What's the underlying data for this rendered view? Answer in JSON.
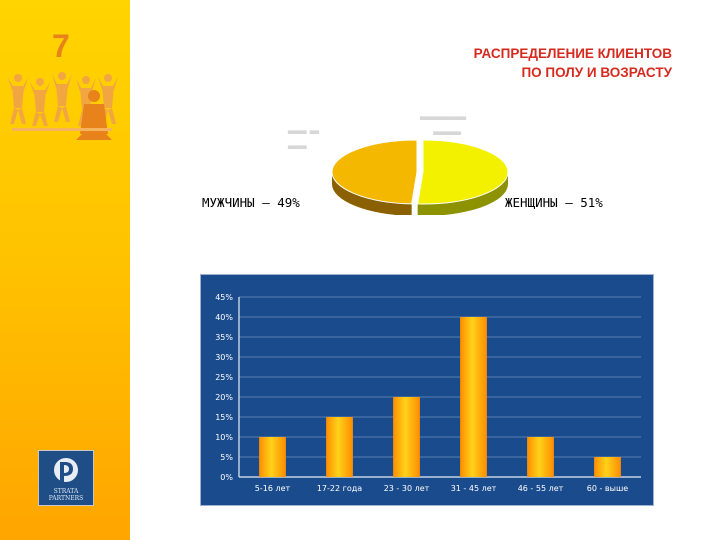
{
  "slide": {
    "number": "7"
  },
  "title": {
    "line1": "РАСПРЕДЕЛЕНИЕ КЛИЕНТОВ",
    "line2": "ПО ПОЛУ И ВОЗРАСТУ"
  },
  "logo": {
    "line1": "STRATA",
    "line2": "PARTNERS"
  },
  "colors": {
    "sidebar_top": "#ffd400",
    "sidebar_bottom": "#ffa500",
    "title": "#d62a1f",
    "panel": "#1a4b8c",
    "bar_light": "#ffd21a",
    "bar_dark": "#ff8c00",
    "pie_women": "#f3f000",
    "pie_men": "#f5b800"
  },
  "chart_data": [
    {
      "type": "pie",
      "title": "",
      "slices": [
        {
          "label": "ЖЕНЩИНЫ – 51%",
          "value": 51
        },
        {
          "label": "МУЖЧИНЫ – 49%",
          "value": 49
        }
      ]
    },
    {
      "type": "bar",
      "title": "",
      "categories": [
        "5-16 лет",
        "17-22 года",
        "23 - 30 лет",
        "31 - 45 лет",
        "46 - 55 лет",
        "60 - выше"
      ],
      "values": [
        10,
        15,
        20,
        40,
        10,
        5
      ],
      "ylim": [
        0,
        45
      ],
      "yticks": [
        "0%",
        "5%",
        "10%",
        "15%",
        "20%",
        "25%",
        "30%",
        "35%",
        "40%",
        "45%"
      ],
      "xlabel": "",
      "ylabel": "",
      "grid": true
    }
  ]
}
